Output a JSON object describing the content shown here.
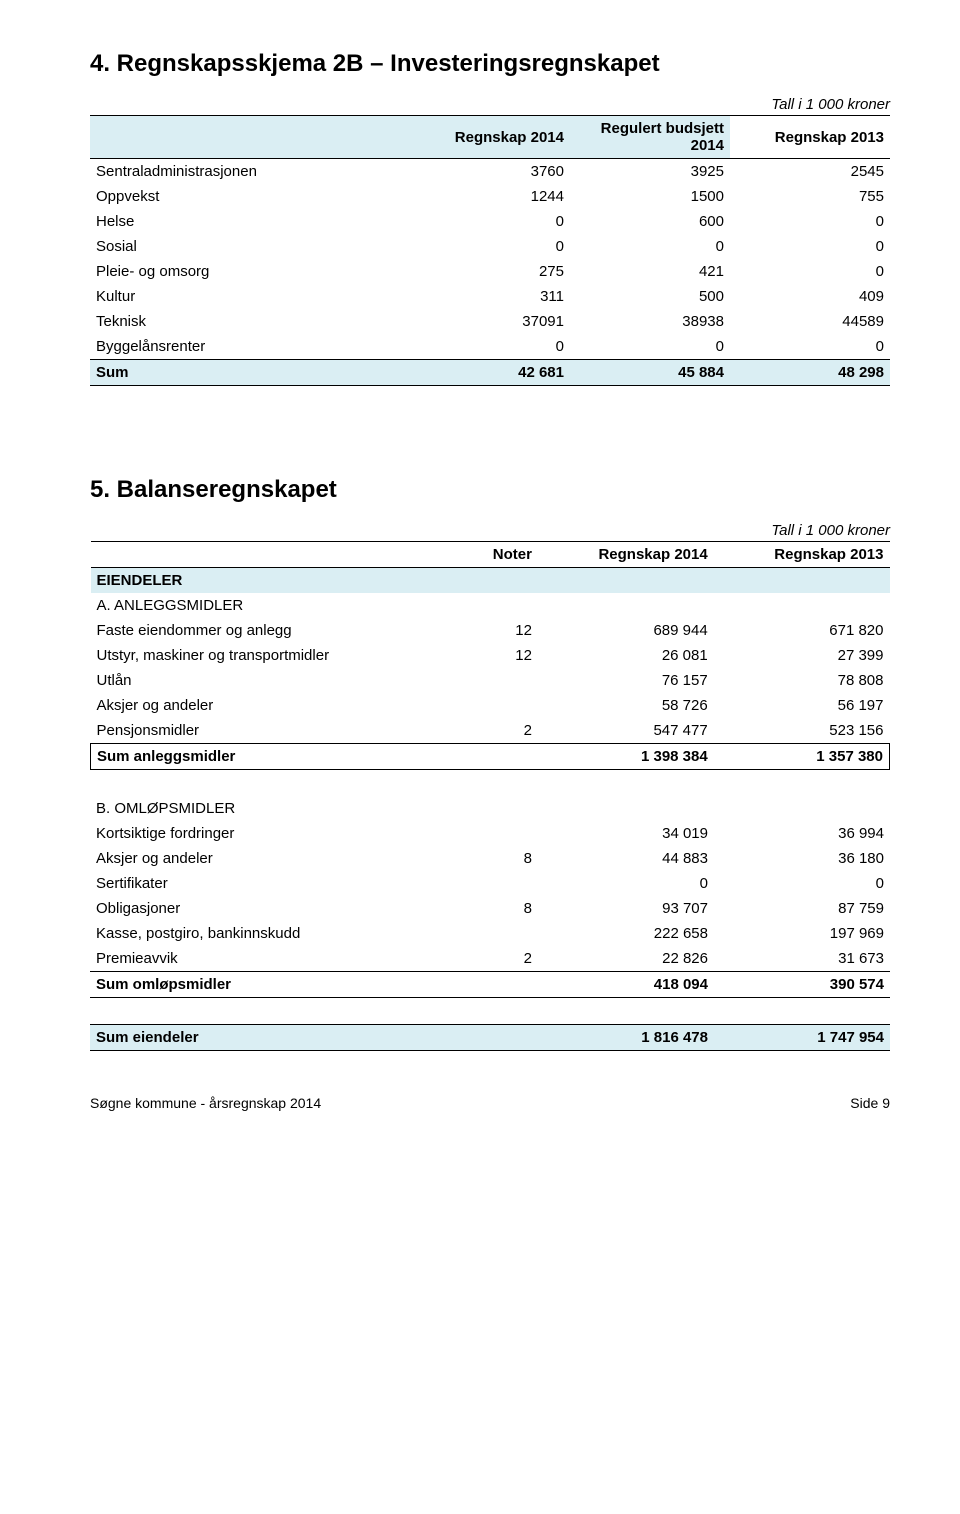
{
  "section4": {
    "title": "4. Regnskapsskjema 2B – Investeringsregnskapet",
    "unit": "Tall i 1 000 kroner",
    "headers": {
      "c1": "Regnskap 2014",
      "c2": "Regulert budsjett 2014",
      "c3": "Regnskap 2013"
    },
    "rows": [
      {
        "label": "Sentraladministrasjonen",
        "v1": "3760",
        "v2": "3925",
        "v3": "2545"
      },
      {
        "label": "Oppvekst",
        "v1": "1244",
        "v2": "1500",
        "v3": "755"
      },
      {
        "label": "Helse",
        "v1": "0",
        "v2": "600",
        "v3": "0"
      },
      {
        "label": "Sosial",
        "v1": "0",
        "v2": "0",
        "v3": "0"
      },
      {
        "label": "Pleie- og omsorg",
        "v1": "275",
        "v2": "421",
        "v3": "0"
      },
      {
        "label": "Kultur",
        "v1": "311",
        "v2": "500",
        "v3": "409"
      },
      {
        "label": "Teknisk",
        "v1": "37091",
        "v2": "38938",
        "v3": "44589"
      },
      {
        "label": "Byggelånsrenter",
        "v1": "0",
        "v2": "0",
        "v3": "0"
      }
    ],
    "sum": {
      "label": "Sum",
      "v1": "42 681",
      "v2": "45 884",
      "v3": "48 298"
    }
  },
  "section5": {
    "title": "5. Balanseregnskapet",
    "unit": "Tall i 1 000 kroner",
    "headers": {
      "notes": "Noter",
      "c1": "Regnskap 2014",
      "c2": "Regnskap 2013"
    },
    "eiendeler_label": "EIENDELER",
    "groupA": {
      "label": "A. ANLEGGSMIDLER",
      "rows": [
        {
          "label": "Faste eiendommer og anlegg",
          "notes": "12",
          "v1": "689 944",
          "v2": "671 820"
        },
        {
          "label": "Utstyr, maskiner og transportmidler",
          "notes": "12",
          "v1": "26 081",
          "v2": "27 399"
        },
        {
          "label": "Utlån",
          "notes": "",
          "v1": "76 157",
          "v2": "78 808"
        },
        {
          "label": "Aksjer og andeler",
          "notes": "",
          "v1": "58 726",
          "v2": "56 197"
        },
        {
          "label": "Pensjonsmidler",
          "notes": "2",
          "v1": "547 477",
          "v2": "523 156"
        }
      ],
      "sum": {
        "label": "Sum anleggsmidler",
        "v1": "1 398 384",
        "v2": "1 357 380"
      }
    },
    "groupB": {
      "label": "B. OMLØPSMIDLER",
      "rows": [
        {
          "label": "Kortsiktige fordringer",
          "notes": "",
          "v1": "34 019",
          "v2": "36 994"
        },
        {
          "label": "Aksjer og andeler",
          "notes": "8",
          "v1": "44 883",
          "v2": "36 180"
        },
        {
          "label": "Sertifikater",
          "notes": "",
          "v1": "0",
          "v2": "0"
        },
        {
          "label": "Obligasjoner",
          "notes": "8",
          "v1": "93 707",
          "v2": "87 759"
        },
        {
          "label": "Kasse, postgiro, bankinnskudd",
          "notes": "",
          "v1": "222 658",
          "v2": "197 969"
        },
        {
          "label": "Premieavvik",
          "notes": "2",
          "v1": "22 826",
          "v2": "31 673"
        }
      ],
      "sum": {
        "label": "Sum omløpsmidler",
        "v1": "418 094",
        "v2": "390 574"
      }
    },
    "total": {
      "label": "Sum eiendeler",
      "v1": "1 816 478",
      "v2": "1 747 954"
    }
  },
  "footer": {
    "left": "Søgne kommune - årsregnskap 2014",
    "right": "Side 9"
  }
}
